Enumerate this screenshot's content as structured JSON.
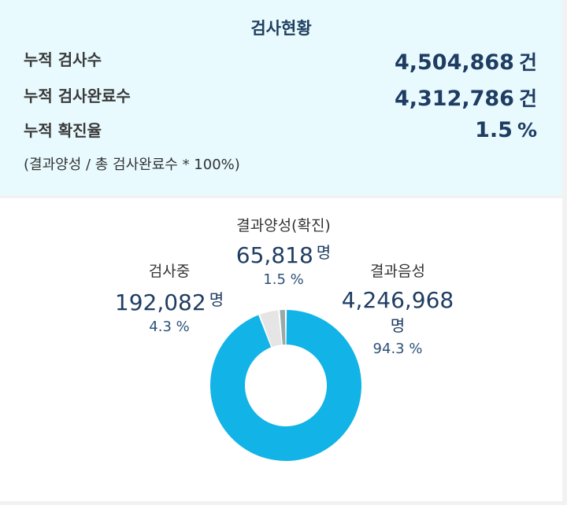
{
  "summary": {
    "title": "검사현황",
    "rows": [
      {
        "label": "누적 검사수",
        "value": "4,504,868",
        "unit": "건"
      },
      {
        "label": "누적 검사완료수",
        "value": "4,312,786",
        "unit": "건"
      },
      {
        "label": "누적 확진율",
        "value": "1.5",
        "unit": "%"
      }
    ],
    "note": "(결과양성 / 총 검사완료수 * 100%)"
  },
  "chart_data": {
    "type": "pie",
    "donut": true,
    "start_angle_deg": 0,
    "direction": "clockwise",
    "categories": [
      "결과음성",
      "검사중",
      "결과양성(확진)"
    ],
    "values": [
      4246968,
      192082,
      65818
    ],
    "value_labels": [
      "4,246,968",
      "192,082",
      "65,818"
    ],
    "unit": "명",
    "percent_labels": [
      "94.3 %",
      "4.3 %",
      "1.5 %"
    ],
    "colors": [
      "#12b3e6",
      "#e5e5e5",
      "#9aa9a9"
    ],
    "legend": "none"
  }
}
